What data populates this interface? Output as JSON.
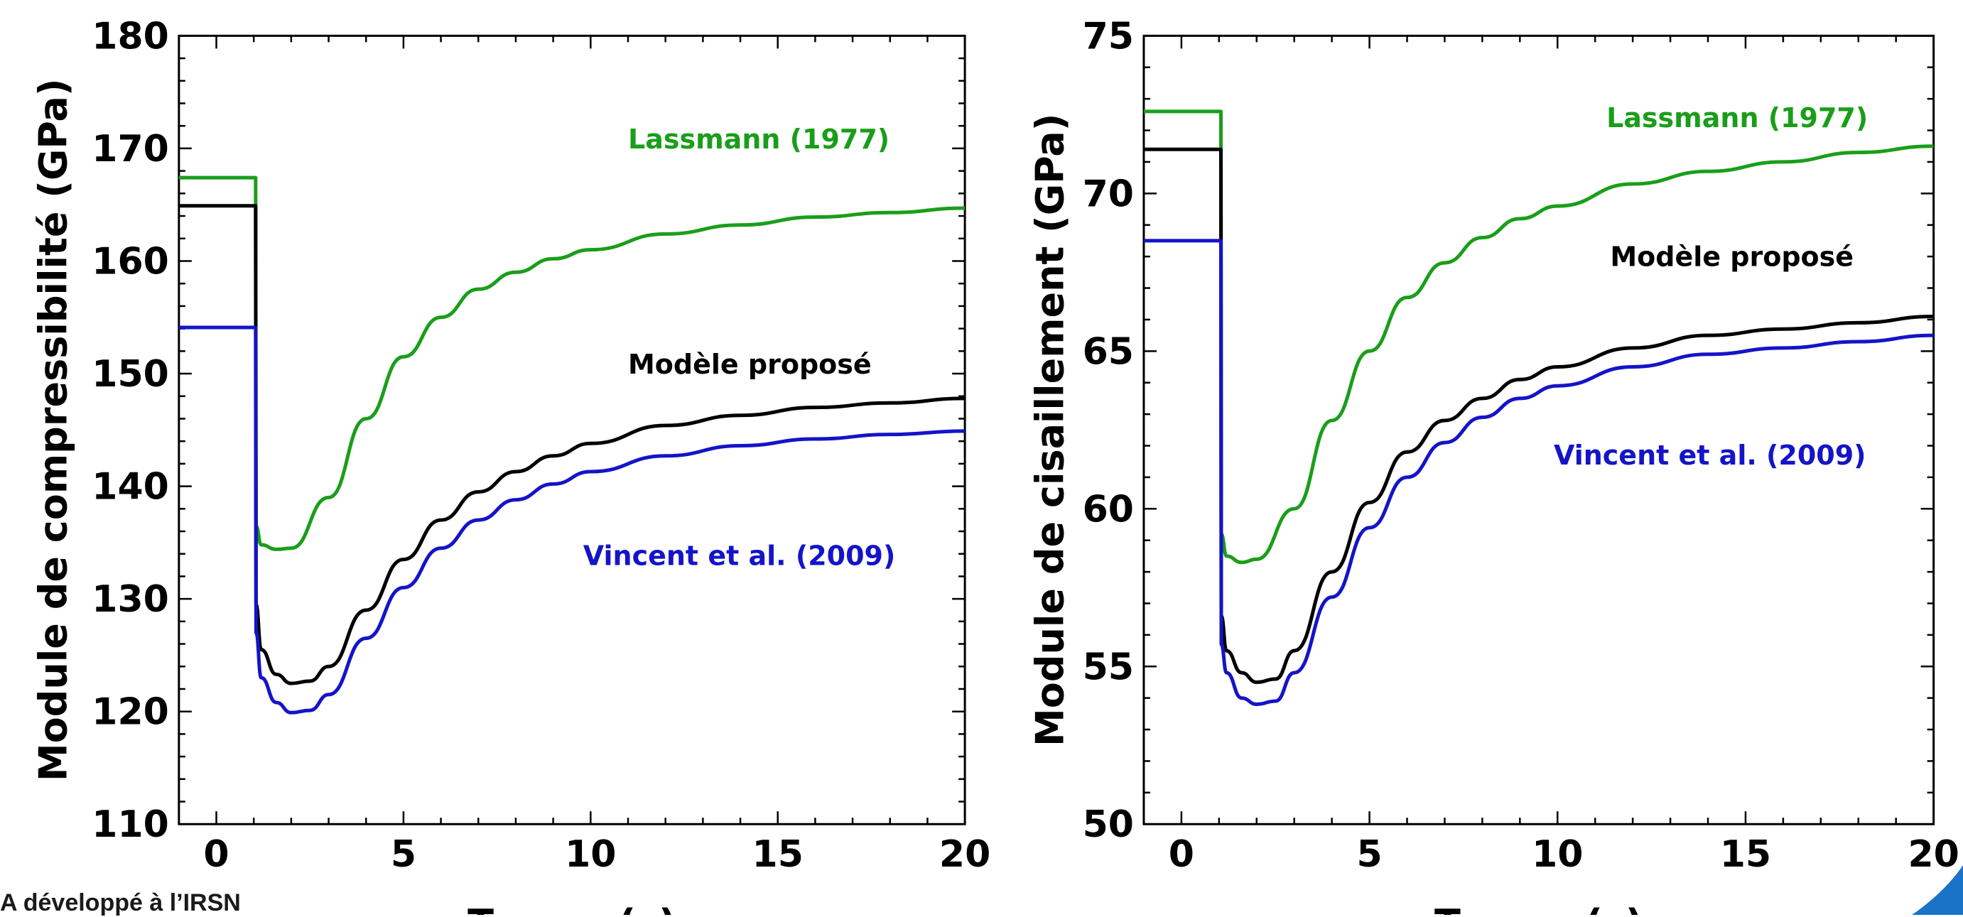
{
  "footer_note": "A développé à l’IRSN",
  "colors": {
    "lassmann": "#1a9e1a",
    "modele": "#000000",
    "vincent": "#1414c8",
    "corner_mark": "#1a73c7"
  },
  "chart_data": [
    {
      "type": "line",
      "xlabel": "Temps (s)",
      "ylabel": "Module de compressibilité (GPa)",
      "xlim": [
        -1,
        20
      ],
      "ylim": [
        110,
        180
      ],
      "xticks": [
        0,
        5,
        10,
        15,
        20
      ],
      "yticks": [
        110,
        120,
        130,
        140,
        150,
        160,
        170,
        180
      ],
      "series": [
        {
          "name": "Lassmann (1977)",
          "color": "#1a9e1a",
          "points": [
            [
              -1,
              167.4
            ],
            [
              1.05,
              167.4
            ],
            [
              1.06,
              136.5
            ],
            [
              1.2,
              134.8
            ],
            [
              1.6,
              134.4
            ],
            [
              2.0,
              134.5
            ],
            [
              3.0,
              139.0
            ],
            [
              4.0,
              146.0
            ],
            [
              5.0,
              151.5
            ],
            [
              6.0,
              155.0
            ],
            [
              7.0,
              157.5
            ],
            [
              8.0,
              159.0
            ],
            [
              9.0,
              160.2
            ],
            [
              10.0,
              161.0
            ],
            [
              12.0,
              162.4
            ],
            [
              14.0,
              163.2
            ],
            [
              16.0,
              163.9
            ],
            [
              18.0,
              164.3
            ],
            [
              20.0,
              164.7
            ]
          ],
          "label_text": "Lassmann (1977)",
          "label_at": [
            11.0,
            170.0
          ]
        },
        {
          "name": "Modèle proposé",
          "color": "#000000",
          "points": [
            [
              -1,
              164.9
            ],
            [
              1.05,
              164.9
            ],
            [
              1.06,
              129.5
            ],
            [
              1.2,
              125.5
            ],
            [
              1.6,
              123.3
            ],
            [
              2.0,
              122.5
            ],
            [
              2.5,
              122.7
            ],
            [
              3.0,
              124.0
            ],
            [
              4.0,
              129.0
            ],
            [
              5.0,
              133.5
            ],
            [
              6.0,
              137.0
            ],
            [
              7.0,
              139.5
            ],
            [
              8.0,
              141.3
            ],
            [
              9.0,
              142.7
            ],
            [
              10.0,
              143.8
            ],
            [
              12.0,
              145.4
            ],
            [
              14.0,
              146.3
            ],
            [
              16.0,
              147.0
            ],
            [
              18.0,
              147.4
            ],
            [
              20.0,
              147.8
            ]
          ],
          "label_text": "Modèle proposé",
          "label_at": [
            11.0,
            150.0
          ]
        },
        {
          "name": "Vincent et al. (2009)",
          "color": "#1414c8",
          "points": [
            [
              -1,
              154.1
            ],
            [
              1.05,
              154.1
            ],
            [
              1.06,
              127.0
            ],
            [
              1.2,
              123.0
            ],
            [
              1.6,
              120.8
            ],
            [
              2.0,
              119.9
            ],
            [
              2.5,
              120.1
            ],
            [
              3.0,
              121.5
            ],
            [
              4.0,
              126.5
            ],
            [
              5.0,
              131.0
            ],
            [
              6.0,
              134.5
            ],
            [
              7.0,
              137.0
            ],
            [
              8.0,
              138.8
            ],
            [
              9.0,
              140.2
            ],
            [
              10.0,
              141.3
            ],
            [
              12.0,
              142.7
            ],
            [
              14.0,
              143.6
            ],
            [
              16.0,
              144.2
            ],
            [
              18.0,
              144.6
            ],
            [
              20.0,
              144.9
            ]
          ],
          "label_text": "Vincent et al. (2009)",
          "label_at": [
            9.8,
            133.0
          ]
        }
      ]
    },
    {
      "type": "line",
      "xlabel": "Temps (s)",
      "ylabel": "Module de cisaillement (GPa)",
      "xlim": [
        -1,
        20
      ],
      "ylim": [
        50,
        75
      ],
      "xticks": [
        0,
        5,
        10,
        15,
        20
      ],
      "yticks": [
        50,
        55,
        60,
        65,
        70,
        75
      ],
      "series": [
        {
          "name": "Lassmann (1977)",
          "color": "#1a9e1a",
          "points": [
            [
              -1,
              72.6
            ],
            [
              1.05,
              72.6
            ],
            [
              1.06,
              59.2
            ],
            [
              1.2,
              58.5
            ],
            [
              1.6,
              58.3
            ],
            [
              2.0,
              58.4
            ],
            [
              3.0,
              60.0
            ],
            [
              4.0,
              62.8
            ],
            [
              5.0,
              65.0
            ],
            [
              6.0,
              66.7
            ],
            [
              7.0,
              67.8
            ],
            [
              8.0,
              68.6
            ],
            [
              9.0,
              69.2
            ],
            [
              10.0,
              69.6
            ],
            [
              12.0,
              70.3
            ],
            [
              14.0,
              70.7
            ],
            [
              16.0,
              71.0
            ],
            [
              18.0,
              71.3
            ],
            [
              20.0,
              71.5
            ]
          ],
          "label_text": "Lassmann (1977)",
          "label_at": [
            11.3,
            72.1
          ]
        },
        {
          "name": "Modèle proposé",
          "color": "#000000",
          "points": [
            [
              -1,
              71.4
            ],
            [
              1.05,
              71.4
            ],
            [
              1.06,
              56.6
            ],
            [
              1.2,
              55.5
            ],
            [
              1.6,
              54.8
            ],
            [
              2.0,
              54.5
            ],
            [
              2.5,
              54.6
            ],
            [
              3.0,
              55.5
            ],
            [
              4.0,
              58.0
            ],
            [
              5.0,
              60.2
            ],
            [
              6.0,
              61.8
            ],
            [
              7.0,
              62.8
            ],
            [
              8.0,
              63.5
            ],
            [
              9.0,
              64.1
            ],
            [
              10.0,
              64.5
            ],
            [
              12.0,
              65.1
            ],
            [
              14.0,
              65.5
            ],
            [
              16.0,
              65.7
            ],
            [
              18.0,
              65.9
            ],
            [
              20.0,
              66.1
            ]
          ],
          "label_text": "Modèle proposé",
          "label_at": [
            11.4,
            67.7
          ]
        },
        {
          "name": "Vincent et al. (2009)",
          "color": "#1414c8",
          "points": [
            [
              -1,
              68.5
            ],
            [
              1.05,
              68.5
            ],
            [
              1.06,
              55.7
            ],
            [
              1.2,
              54.8
            ],
            [
              1.6,
              54.0
            ],
            [
              2.0,
              53.8
            ],
            [
              2.5,
              53.9
            ],
            [
              3.0,
              54.8
            ],
            [
              4.0,
              57.2
            ],
            [
              5.0,
              59.4
            ],
            [
              6.0,
              61.0
            ],
            [
              7.0,
              62.1
            ],
            [
              8.0,
              62.9
            ],
            [
              9.0,
              63.5
            ],
            [
              10.0,
              63.9
            ],
            [
              12.0,
              64.5
            ],
            [
              14.0,
              64.9
            ],
            [
              16.0,
              65.1
            ],
            [
              18.0,
              65.3
            ],
            [
              20.0,
              65.5
            ]
          ],
          "label_text": "Vincent et al. (2009)",
          "label_at": [
            9.9,
            61.4
          ]
        }
      ]
    }
  ]
}
